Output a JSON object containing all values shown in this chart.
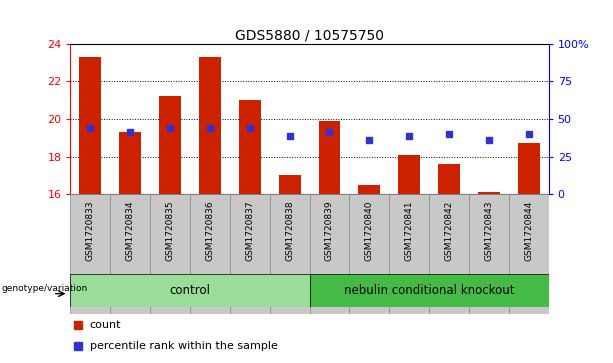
{
  "title": "GDS5880 / 10575750",
  "samples": [
    "GSM1720833",
    "GSM1720834",
    "GSM1720835",
    "GSM1720836",
    "GSM1720837",
    "GSM1720838",
    "GSM1720839",
    "GSM1720840",
    "GSM1720841",
    "GSM1720842",
    "GSM1720843",
    "GSM1720844"
  ],
  "bar_values": [
    23.3,
    19.3,
    21.2,
    23.3,
    21.0,
    17.0,
    19.9,
    16.5,
    18.1,
    17.6,
    16.1,
    18.7
  ],
  "blue_values": [
    19.5,
    19.3,
    19.5,
    19.5,
    19.5,
    19.1,
    19.3,
    18.9,
    19.1,
    19.2,
    18.9,
    19.2
  ],
  "ymin": 16,
  "ymax": 24,
  "yticks": [
    16,
    18,
    20,
    22,
    24
  ],
  "right_ytick_labels": [
    "0",
    "25",
    "50",
    "75",
    "100%"
  ],
  "bar_color": "#cc2200",
  "blue_color": "#3333cc",
  "bar_bottom": 16,
  "n_control": 6,
  "n_knockout": 6,
  "control_label": "control",
  "knockout_label": "nebulin conditional knockout",
  "genotype_label": "genotype/variation",
  "legend_bar_label": "count",
  "legend_dot_label": "percentile rank within the sample",
  "control_color": "#99dd99",
  "knockout_color": "#44bb44",
  "sample_bg_color": "#c8c8c8",
  "sample_border_color": "#888888",
  "fig_bg": "#ffffff"
}
